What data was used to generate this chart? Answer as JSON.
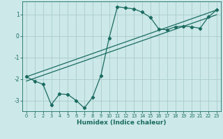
{
  "xlabel": "Humidex (Indice chaleur)",
  "xlim": [
    -0.5,
    23.5
  ],
  "ylim": [
    -3.5,
    1.6
  ],
  "xticks": [
    0,
    1,
    2,
    3,
    4,
    5,
    6,
    7,
    8,
    9,
    10,
    11,
    12,
    13,
    14,
    15,
    16,
    17,
    18,
    19,
    20,
    21,
    22,
    23
  ],
  "yticks": [
    -3,
    -2,
    -1,
    0,
    1
  ],
  "background_color": "#cce8e8",
  "grid_color": "#aacccc",
  "line_color": "#1a6b60",
  "line1_x": [
    0,
    1,
    2,
    3,
    4,
    5,
    6,
    7,
    8,
    9,
    10,
    11,
    12,
    13,
    14,
    15,
    16,
    17,
    18,
    19,
    20,
    21,
    22,
    23
  ],
  "line1_y": [
    -1.9,
    -2.1,
    -2.25,
    -3.2,
    -2.7,
    -2.72,
    -3.0,
    -3.35,
    -2.85,
    -1.85,
    -0.1,
    1.35,
    1.3,
    1.25,
    1.1,
    0.85,
    0.32,
    0.28,
    0.42,
    0.45,
    0.42,
    0.35,
    0.88,
    1.2
  ],
  "line2_x": [
    0,
    23
  ],
  "line2_y": [
    -1.9,
    1.2
  ],
  "line3_x": [
    0,
    23
  ],
  "line3_y": [
    -2.1,
    0.98
  ]
}
